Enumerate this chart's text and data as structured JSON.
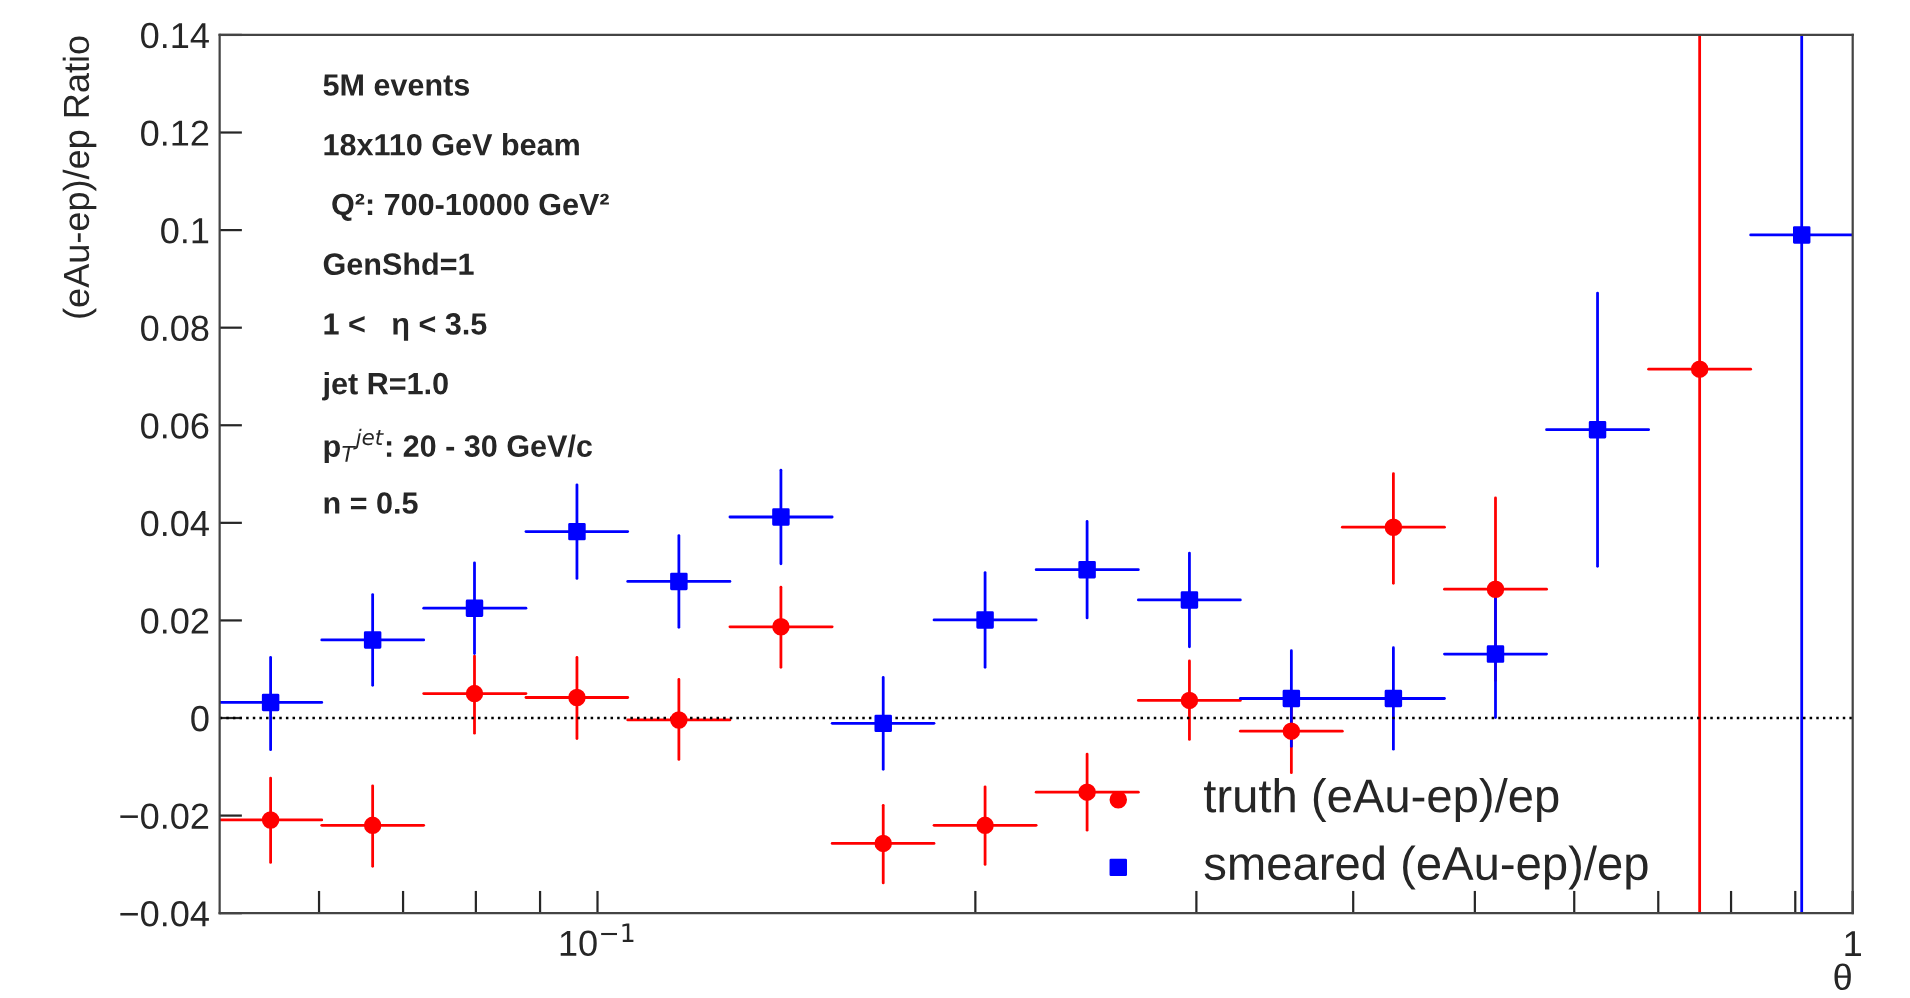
{
  "chart_data": {
    "type": "scatter",
    "ylabel": "(eAu-ep)/ep Ratio",
    "xlabel": "θ",
    "log": "x",
    "x": [
      0.0549,
      0.0662,
      0.0798,
      0.0963,
      0.1161,
      0.14,
      0.1689,
      0.2036,
      0.2455,
      0.2962,
      0.3571,
      0.4306,
      0.5193,
      0.6262,
      0.7552,
      0.9107
    ],
    "series": [
      {
        "name": "truth (eAu-ep)/ep",
        "color": "#ff0000",
        "marker": "circle",
        "values": [
          -0.0209,
          -0.022,
          0.005,
          0.0042,
          -0.0004,
          0.0187,
          -0.0257,
          -0.022,
          -0.0152,
          0.0036,
          -0.0027,
          0.0391,
          0.0264,
          null,
          0.0715,
          null
        ],
        "xerrors": [
          [
            0.05,
            0.0603
          ],
          [
            0.0603,
            0.0727
          ],
          [
            0.0727,
            0.0877
          ],
          [
            0.0877,
            0.1057
          ],
          [
            0.1057,
            0.1275
          ],
          [
            0.1275,
            0.1538
          ],
          [
            0.1538,
            0.1854
          ],
          [
            0.1854,
            0.2236
          ],
          [
            0.2236,
            0.2697
          ],
          [
            0.2697,
            0.3252
          ],
          [
            0.3252,
            0.3921
          ],
          [
            0.3921,
            0.4729
          ],
          [
            0.4729,
            0.5703
          ],
          null,
          [
            0.6877,
            0.8293
          ],
          null
        ],
        "errors": [
          [
            -0.0296,
            -0.0123
          ],
          [
            -0.0304,
            -0.0139
          ],
          [
            -0.0031,
            0.0127
          ],
          [
            -0.0042,
            0.0124
          ],
          [
            -0.0085,
            0.0079
          ],
          [
            0.0104,
            0.0268
          ],
          [
            -0.0338,
            -0.0179
          ],
          [
            -0.03,
            -0.0141
          ],
          [
            -0.023,
            -0.0074
          ],
          [
            -0.0044,
            0.0117
          ],
          [
            -0.0112,
            0.0053
          ],
          [
            0.0276,
            0.0501
          ],
          [
            0.0077,
            0.0451
          ],
          null,
          [
            -0.04,
            0.14
          ],
          null
        ]
      },
      {
        "name": "smeared (eAu-ep)/ep",
        "color": "#0000ff",
        "marker": "square",
        "values": [
          0.0032,
          0.016,
          0.0225,
          0.0382,
          0.028,
          0.0412,
          -0.0011,
          0.0201,
          0.0304,
          0.0242,
          0.004,
          0.004,
          0.0131,
          0.0591,
          null,
          0.099
        ],
        "xerrors": [
          [
            0.05,
            0.0603
          ],
          [
            0.0603,
            0.0727
          ],
          [
            0.0727,
            0.0877
          ],
          [
            0.0877,
            0.1057
          ],
          [
            0.1057,
            0.1275
          ],
          [
            0.1275,
            0.1538
          ],
          [
            0.1538,
            0.1854
          ],
          [
            0.1854,
            0.2236
          ],
          [
            0.2236,
            0.2697
          ],
          [
            0.2697,
            0.3252
          ],
          [
            0.3252,
            0.3921
          ],
          [
            0.3921,
            0.4729
          ],
          [
            0.4729,
            0.5703
          ],
          [
            0.5703,
            0.6877
          ],
          null,
          [
            0.8293,
            1.0
          ]
        ],
        "errors": [
          [
            -0.0065,
            0.0124
          ],
          [
            0.0067,
            0.0253
          ],
          [
            0.0132,
            0.0318
          ],
          [
            0.0286,
            0.0478
          ],
          [
            0.0186,
            0.0374
          ],
          [
            0.0316,
            0.0508
          ],
          [
            -0.0105,
            0.0083
          ],
          [
            0.0104,
            0.0298
          ],
          [
            0.0205,
            0.0403
          ],
          [
            0.0146,
            0.0338
          ],
          [
            -0.0058,
            0.0138
          ],
          [
            -0.0064,
            0.0144
          ],
          [
            0.0001,
            0.0261
          ],
          [
            0.0311,
            0.0871
          ],
          null,
          [
            -0.04,
            0.14
          ]
        ]
      }
    ],
    "xlim": [
      0.05,
      1
    ],
    "ylim": [
      -0.04,
      0.14
    ],
    "xticks": [
      {
        "value": 0.06,
        "label": null
      },
      {
        "value": 0.07,
        "label": null
      },
      {
        "value": 0.08,
        "label": null
      },
      {
        "value": 0.09,
        "label": null
      },
      {
        "value": 0.1,
        "label": "10$^{−1}$"
      },
      {
        "value": 0.2,
        "label": null
      },
      {
        "value": 0.3,
        "label": null
      },
      {
        "value": 0.4,
        "label": null
      },
      {
        "value": 0.5,
        "label": null
      },
      {
        "value": 0.6,
        "label": null
      },
      {
        "value": 0.7,
        "label": null
      },
      {
        "value": 0.8,
        "label": null
      },
      {
        "value": 0.9,
        "label": null
      },
      {
        "value": 1,
        "label": "1"
      }
    ],
    "yticks": [
      {
        "value": -0.04,
        "label": "−0.04"
      },
      {
        "value": -0.02,
        "label": "−0.02"
      },
      0,
      0.02,
      0.04,
      0.06,
      0.08,
      0.1,
      0.12,
      0.14
    ],
    "ref_lines": [
      {
        "axis": "y",
        "value": 0,
        "color": "#000000",
        "line_style": "dotted"
      }
    ],
    "annotations": [
      "5M events",
      "18x110 GeV beam",
      " Q²: 700-10000 GeV²",
      "GenShd=1",
      "1 <   η < 3.5",
      "jet R=1.0",
      "p$_{T}$$^{jet}$: 20 - 30 GeV/c",
      "n = 0.5"
    ],
    "grid": false,
    "legend": "bottom right"
  }
}
